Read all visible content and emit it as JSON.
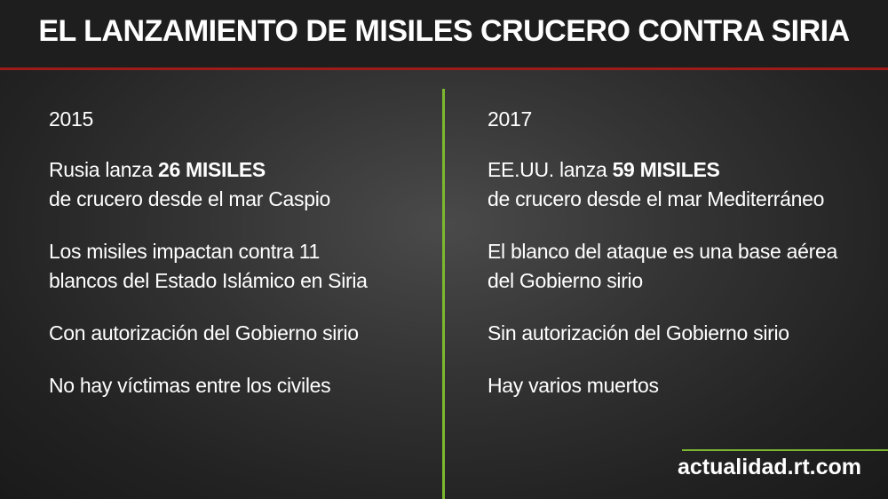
{
  "header": {
    "title": "EL LANZAMIENTO DE MISILES CRUCERO CONTRA SIRIA"
  },
  "columns": [
    {
      "year": "2015",
      "headline": {
        "lead": "Rusia lanza",
        "bold": "26 MISILES",
        "rest": "de crucero desde el mar Caspio"
      },
      "items": [
        [
          "Los misiles impactan contra 11",
          "blancos del Estado Islámico en Siria"
        ],
        [
          "Con autorización del Gobierno sirio"
        ],
        [
          "No hay víctimas entre los civiles"
        ]
      ]
    },
    {
      "year": "2017",
      "headline": {
        "lead": "EE.UU. lanza",
        "bold": "59 MISILES",
        "rest": "de crucero desde el mar Mediterráneo"
      },
      "items": [
        [
          "El blanco del ataque es una base aérea",
          "del Gobierno sirio"
        ],
        [
          "Sin autorización del Gobierno sirio"
        ],
        [
          "Hay varios muertos"
        ]
      ]
    }
  ],
  "footer": {
    "source": "actualidad.rt.com"
  }
}
